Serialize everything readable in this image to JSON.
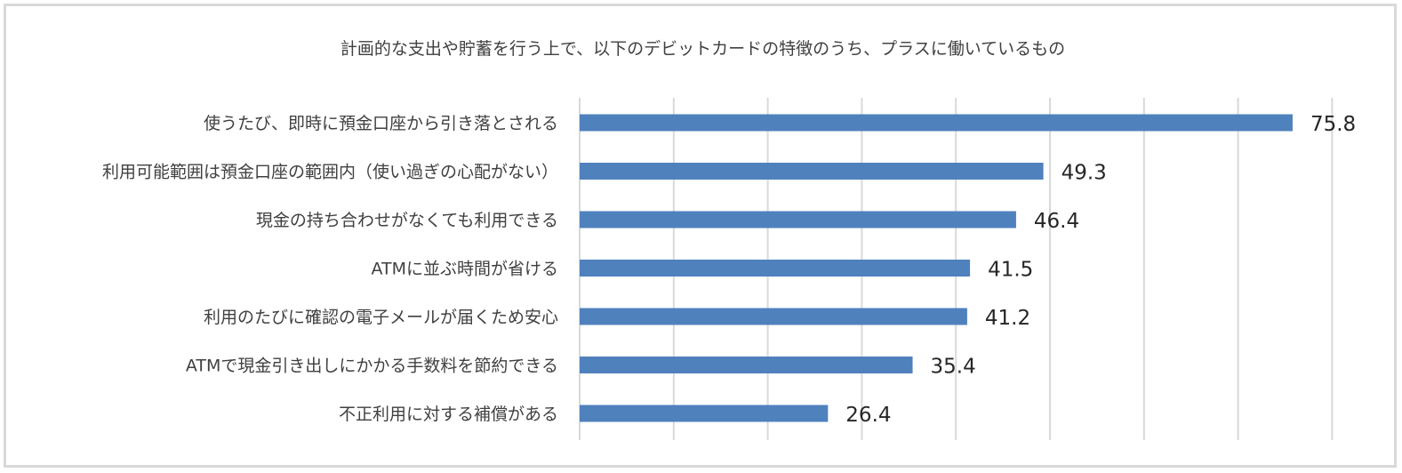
{
  "chart_data": {
    "type": "bar",
    "orientation": "horizontal",
    "title": "計画的な支出や貯蓄を行う上で、以下のデビットカードの特徴のうち、プラスに働いているもの",
    "categories": [
      "使うたび、即時に預金口座から引き落とされる",
      "利用可能範囲は預金口座の範囲内（使い過ぎの心配がない）",
      "現金の持ち合わせがなくても利用できる",
      "ATMに並ぶ時間が省ける",
      "利用のたびに確認の電子メールが届くため安心",
      "ATMで現金引き出しにかかる手数料を節約できる",
      "不正利用に対する補償がある"
    ],
    "values": [
      75.8,
      49.3,
      46.4,
      41.5,
      41.2,
      35.4,
      26.4
    ],
    "value_labels": [
      "75.8",
      "49.3",
      "46.4",
      "41.5",
      "41.2",
      "35.4",
      "26.4"
    ],
    "xlim": [
      0,
      80
    ],
    "x_gridlines_every": 10,
    "grid": true,
    "legend": "none",
    "colors": {
      "bar": "#4f81bd",
      "grid": "#d9d9d9",
      "text": "#404040",
      "value": "#262626",
      "frame": "#d9d9d9"
    }
  }
}
